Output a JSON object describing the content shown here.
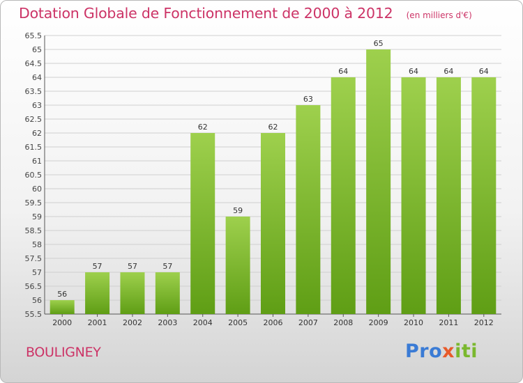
{
  "title": "Dotation Globale de Fonctionnement de 2000 à 2012",
  "unit": "(en milliers d'€)",
  "commune": "BOULIGNEY",
  "logo": {
    "text": "Proxiti",
    "colors": [
      "#3a7bd5",
      "#e85a2a",
      "#7ab82e"
    ]
  },
  "colors": {
    "bar_top": "#9ed04d",
    "bar_bottom": "#5f9e15",
    "title": "#cc3366",
    "grid": "#cfcfcf"
  },
  "chart_data": {
    "type": "bar",
    "categories": [
      "2000",
      "2001",
      "2002",
      "2003",
      "2004",
      "2005",
      "2006",
      "2007",
      "2008",
      "2009",
      "2010",
      "2011",
      "2012"
    ],
    "values": [
      56,
      57,
      57,
      57,
      62,
      59,
      62,
      63,
      64,
      65,
      64,
      64,
      64
    ],
    "data_labels": [
      "56",
      "57",
      "57",
      "57",
      "62",
      "59",
      "62",
      "63",
      "64",
      "65",
      "64",
      "64",
      "64"
    ],
    "ylim": [
      55.5,
      65.5
    ],
    "yticks": [
      55.5,
      56,
      56.5,
      57,
      57.5,
      58,
      58.5,
      59,
      59.5,
      60,
      60.5,
      61,
      61.5,
      62,
      62.5,
      63,
      63.5,
      64,
      64.5,
      65,
      65.5
    ],
    "ytick_labels": [
      "55.5",
      "56",
      "56.5",
      "57",
      "57.5",
      "58",
      "58.5",
      "59",
      "59.5",
      "60",
      "60.5",
      "61",
      "61.5",
      "62",
      "62.5",
      "63",
      "63.5",
      "64",
      "64.5",
      "65",
      "65.5"
    ],
    "grid": true,
    "legend": false,
    "xlabel": "",
    "ylabel": ""
  }
}
